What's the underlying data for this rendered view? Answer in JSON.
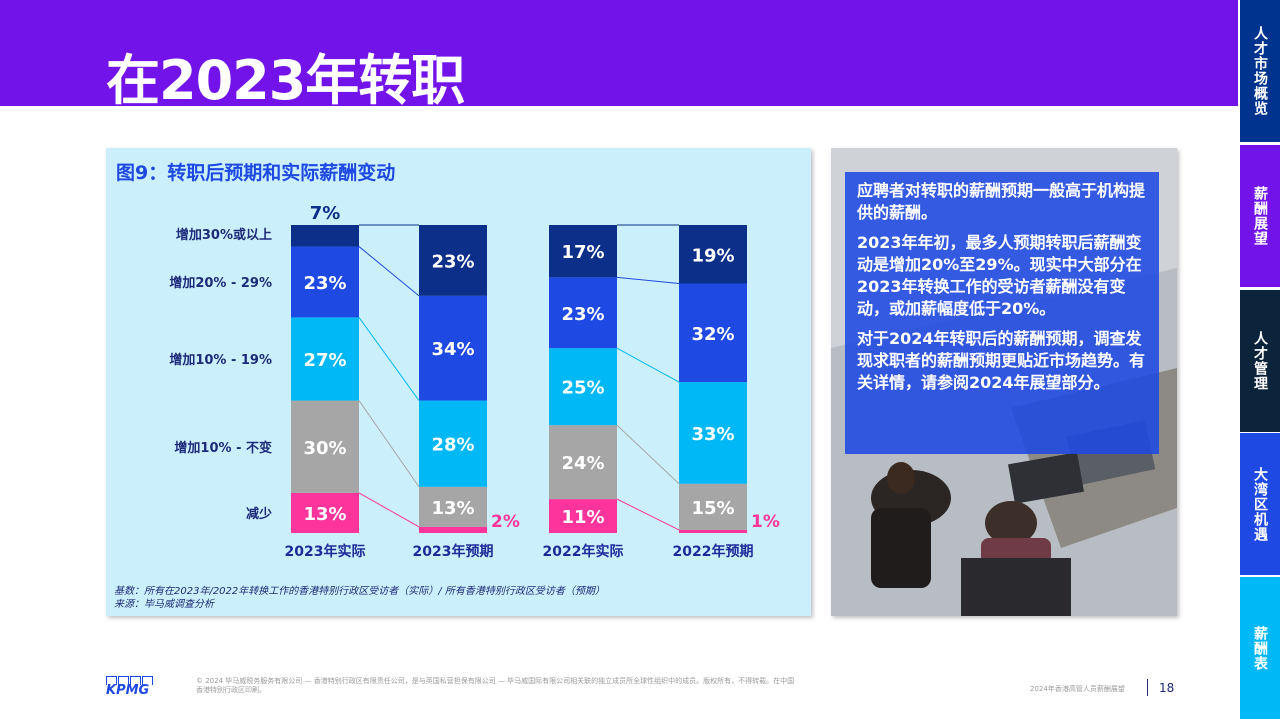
{
  "page": {
    "title": "在2023年转职"
  },
  "nav": {
    "tabs": [
      {
        "label": "人才市场概览",
        "color": "#00338D"
      },
      {
        "label": "薪酬展望",
        "color": "#7213EA"
      },
      {
        "label": "人才管理",
        "color": "#0C233C"
      },
      {
        "label": "大湾区机遇",
        "color": "#1E49E2"
      },
      {
        "label": "薪酬表",
        "color": "#00B8F5"
      }
    ]
  },
  "chart_data": {
    "type": "bar",
    "stacked": true,
    "title": "图9：转职后预期和实际薪酬变动",
    "categories": [
      "2023年实际",
      "2023年预期",
      "2022年实际",
      "2022年预期"
    ],
    "series": [
      {
        "name": "减少",
        "values": [
          13,
          2,
          11,
          1
        ],
        "color": "#FD349C"
      },
      {
        "name": "增加10% - 不变",
        "values": [
          30,
          13,
          24,
          15
        ],
        "color": "#A6A6A6"
      },
      {
        "name": "增加10% - 19%",
        "values": [
          27,
          28,
          25,
          33
        ],
        "color": "#00B8F5"
      },
      {
        "name": "增加20% - 29%",
        "values": [
          23,
          34,
          23,
          32
        ],
        "color": "#1E49E2"
      },
      {
        "name": "增加30%或以上",
        "values": [
          7,
          23,
          17,
          19
        ],
        "color": "#0C2F8A"
      }
    ],
    "ylim": [
      0,
      100
    ],
    "grid": false,
    "legend": "left"
  },
  "footnotes": {
    "base": "基数：所有在2023年/2022年转换工作的香港特别行政区受访者（实际）/ 所有香港特别行政区受访者（预期）",
    "source": "来源：毕马威调查分析"
  },
  "sidebar_text": {
    "p1": "应聘者对转职的薪酬预期一般高于机构提供的薪酬。",
    "p2": "2023年年初，最多人预期转职后薪酬变动是增加20%至29%。现实中大部分在2023年转换工作的受访者薪酬没有变动，或加薪幅度低于20%。",
    "p3": "对于2024年转职后的薪酬预期，调查发现求职者的薪酬预期更贴近市场趋势。有关详情，请参阅2024年展望部分。"
  },
  "footer": {
    "logo": "KPMG",
    "copyright": "© 2024 毕马威税务服务有限公司 — 香港特别行政区有限责任公司，是与英国私营担保有限公司 — 毕马威国际有限公司相关联的独立成员所全球性组织中的成员。版权所有，不得转载。在中国香港特别行政区印刷。",
    "report": "2024年香港高管人员薪酬展望",
    "page_number": "18"
  }
}
